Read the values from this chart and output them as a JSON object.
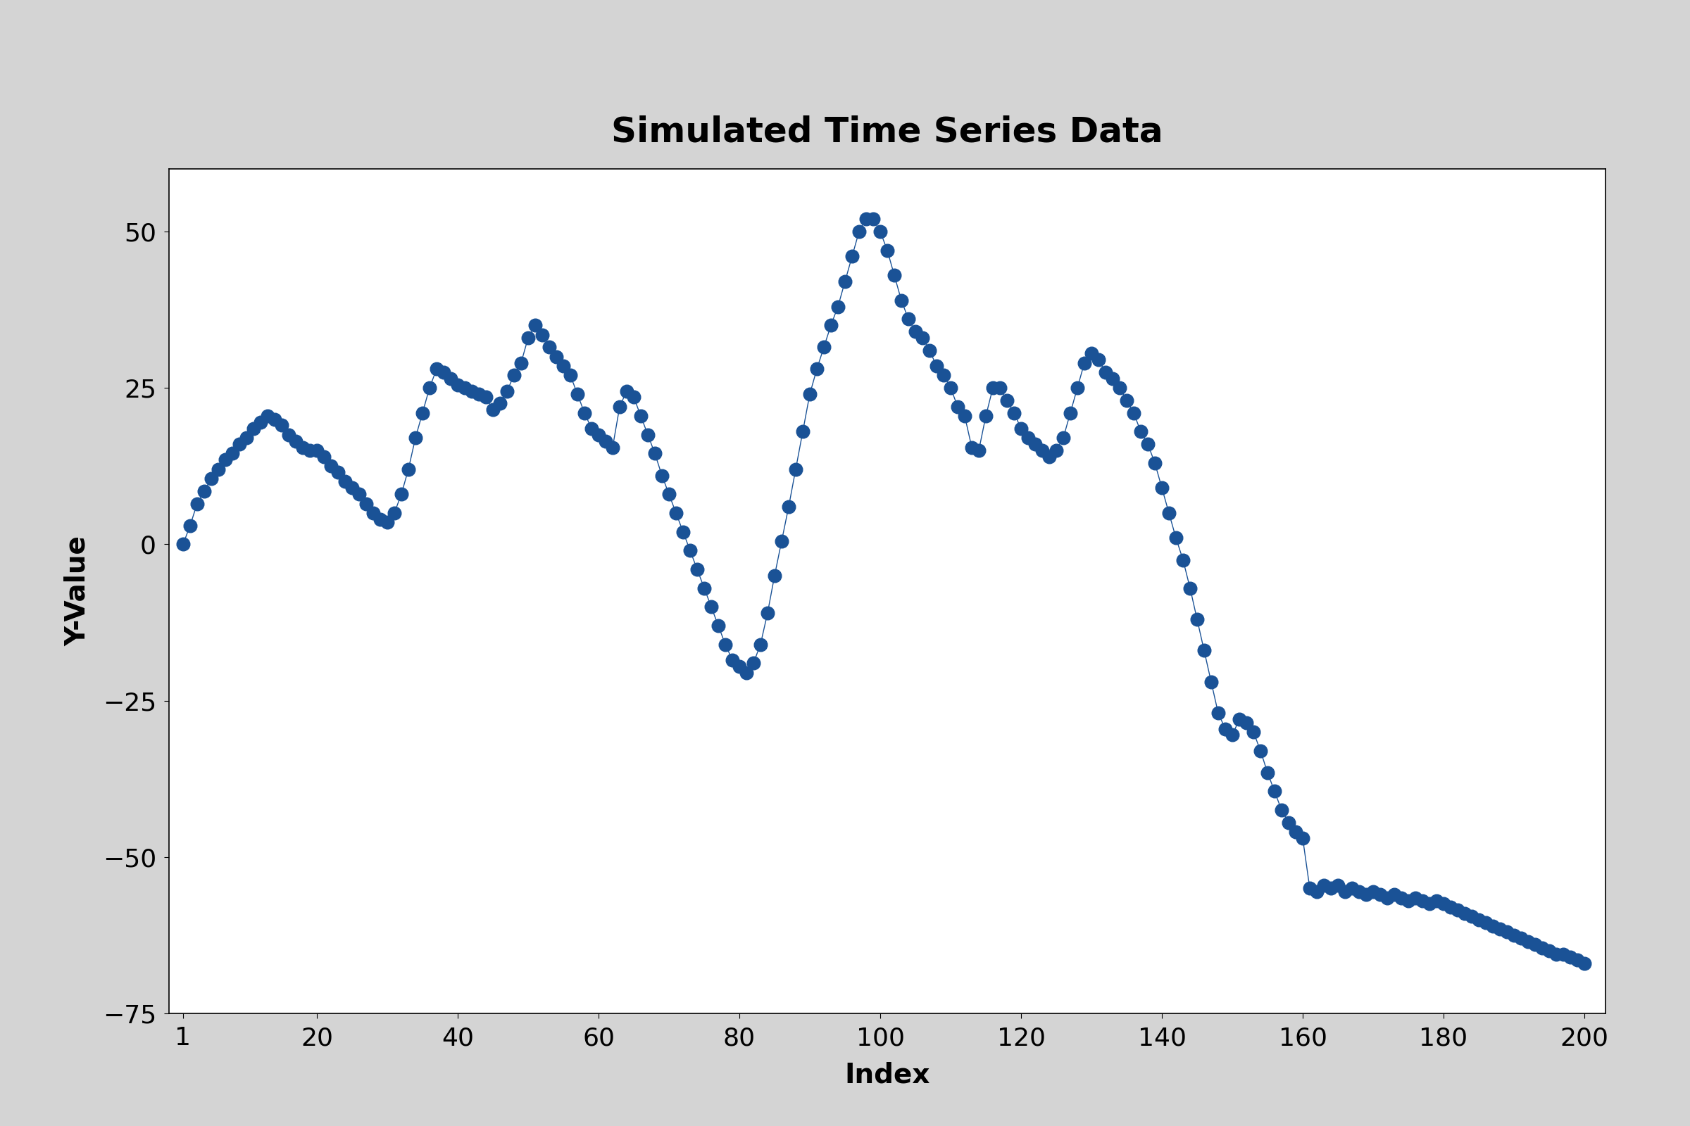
{
  "title": "Simulated Time Series Data",
  "xlabel": "Index",
  "ylabel": "Y-Value",
  "xlim": [
    1,
    200
  ],
  "ylim": [
    -75,
    60
  ],
  "xticks": [
    1,
    20,
    40,
    60,
    80,
    100,
    120,
    140,
    160,
    180,
    200
  ],
  "yticks": [
    -75,
    -50,
    -25,
    0,
    25,
    50
  ],
  "background_color": "#d4d4d4",
  "plot_bg_color": "#ffffff",
  "line_color": "#1a5296",
  "dot_color": "#1a5296",
  "title_fontsize": 36,
  "label_fontsize": 28,
  "tick_fontsize": 26,
  "dot_size": 180,
  "y_values": [
    0.0,
    3.0,
    6.5,
    8.5,
    10.5,
    12.0,
    13.5,
    14.5,
    16.0,
    17.0,
    18.5,
    19.5,
    20.5,
    20.0,
    19.0,
    17.5,
    16.5,
    15.5,
    15.0,
    15.0,
    14.0,
    12.5,
    11.5,
    10.0,
    9.0,
    8.0,
    6.5,
    5.0,
    4.0,
    3.5,
    5.0,
    8.0,
    12.0,
    17.0,
    21.0,
    25.0,
    28.0,
    27.5,
    26.5,
    25.5,
    25.0,
    24.5,
    24.0,
    23.5,
    21.5,
    22.5,
    24.5,
    27.0,
    29.0,
    33.0,
    35.0,
    33.5,
    31.5,
    30.0,
    28.5,
    27.0,
    24.0,
    21.0,
    18.5,
    17.5,
    16.5,
    15.5,
    22.0,
    24.5,
    23.5,
    20.5,
    17.5,
    14.5,
    11.0,
    8.0,
    5.0,
    2.0,
    -1.0,
    -4.0,
    -7.0,
    -10.0,
    -13.0,
    -16.0,
    -18.5,
    -19.5,
    -20.5,
    -19.0,
    -16.0,
    -11.0,
    -5.0,
    0.5,
    6.0,
    12.0,
    18.0,
    24.0,
    28.0,
    31.5,
    35.0,
    38.0,
    42.0,
    46.0,
    50.0,
    52.0,
    52.0,
    50.0,
    47.0,
    43.0,
    39.0,
    36.0,
    34.0,
    33.0,
    31.0,
    28.5,
    27.0,
    25.0,
    22.0,
    20.5,
    15.5,
    15.0,
    20.5,
    25.0,
    25.0,
    23.0,
    21.0,
    18.5,
    17.0,
    16.0,
    15.0,
    14.0,
    15.0,
    17.0,
    21.0,
    25.0,
    29.0,
    30.5,
    29.5,
    27.5,
    26.5,
    25.0,
    23.0,
    21.0,
    18.0,
    16.0,
    13.0,
    9.0,
    5.0,
    1.0,
    -2.5,
    -7.0,
    -12.0,
    -17.0,
    -22.0,
    -27.0,
    -29.5,
    -30.5,
    -28.0,
    -28.5,
    -30.0,
    -33.0,
    -36.5,
    -39.5,
    -42.5,
    -44.5,
    -46.0,
    -47.0,
    -55.0,
    -55.5,
    -54.5,
    -55.0,
    -54.5,
    -55.5,
    -55.0,
    -55.5,
    -56.0,
    -55.5,
    -56.0,
    -56.5,
    -56.0,
    -56.5,
    -57.0,
    -56.5,
    -57.0,
    -57.5,
    -57.0,
    -57.5,
    -58.0,
    -58.5,
    -59.0,
    -59.5,
    -60.0,
    -60.5,
    -61.0,
    -61.5,
    -62.0,
    -62.5,
    -63.0,
    -63.5,
    -64.0,
    -64.5,
    -65.0,
    -65.5,
    -65.5,
    -66.0,
    -66.5,
    -67.0
  ]
}
